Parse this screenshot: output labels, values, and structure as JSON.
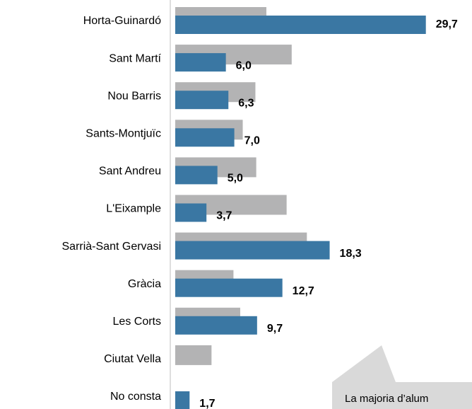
{
  "chart_data": {
    "type": "bar",
    "orientation": "horizontal",
    "categories": [
      "Horta-Guinardó",
      "Sant Martí",
      "Nou Barris",
      "Sants-Montjuïc",
      "Sant Andreu",
      "L'Eixample",
      "Sarrià-Sant Gervasi",
      "Gràcia",
      "Les Corts",
      "Ciutat Vella",
      "No consta"
    ],
    "series": [
      {
        "color": "#b3b3b4",
        "values": [
          10.8,
          13.8,
          9.5,
          8.0,
          9.6,
          13.2,
          15.6,
          6.9,
          7.7,
          4.3,
          null
        ]
      },
      {
        "color": "#3a77a3",
        "values": [
          29.7,
          6.0,
          6.3,
          7.0,
          5.0,
          3.7,
          18.3,
          12.7,
          9.7,
          null,
          1.7
        ],
        "value_labels": [
          "29,7",
          "6,0",
          "6,3",
          "7,0",
          "5,0",
          "3,7",
          "18,3",
          "12,7",
          "9,7",
          null,
          "1,7"
        ]
      }
    ],
    "xlim": [
      0,
      35
    ],
    "annotation": "La majoria d’alum"
  }
}
